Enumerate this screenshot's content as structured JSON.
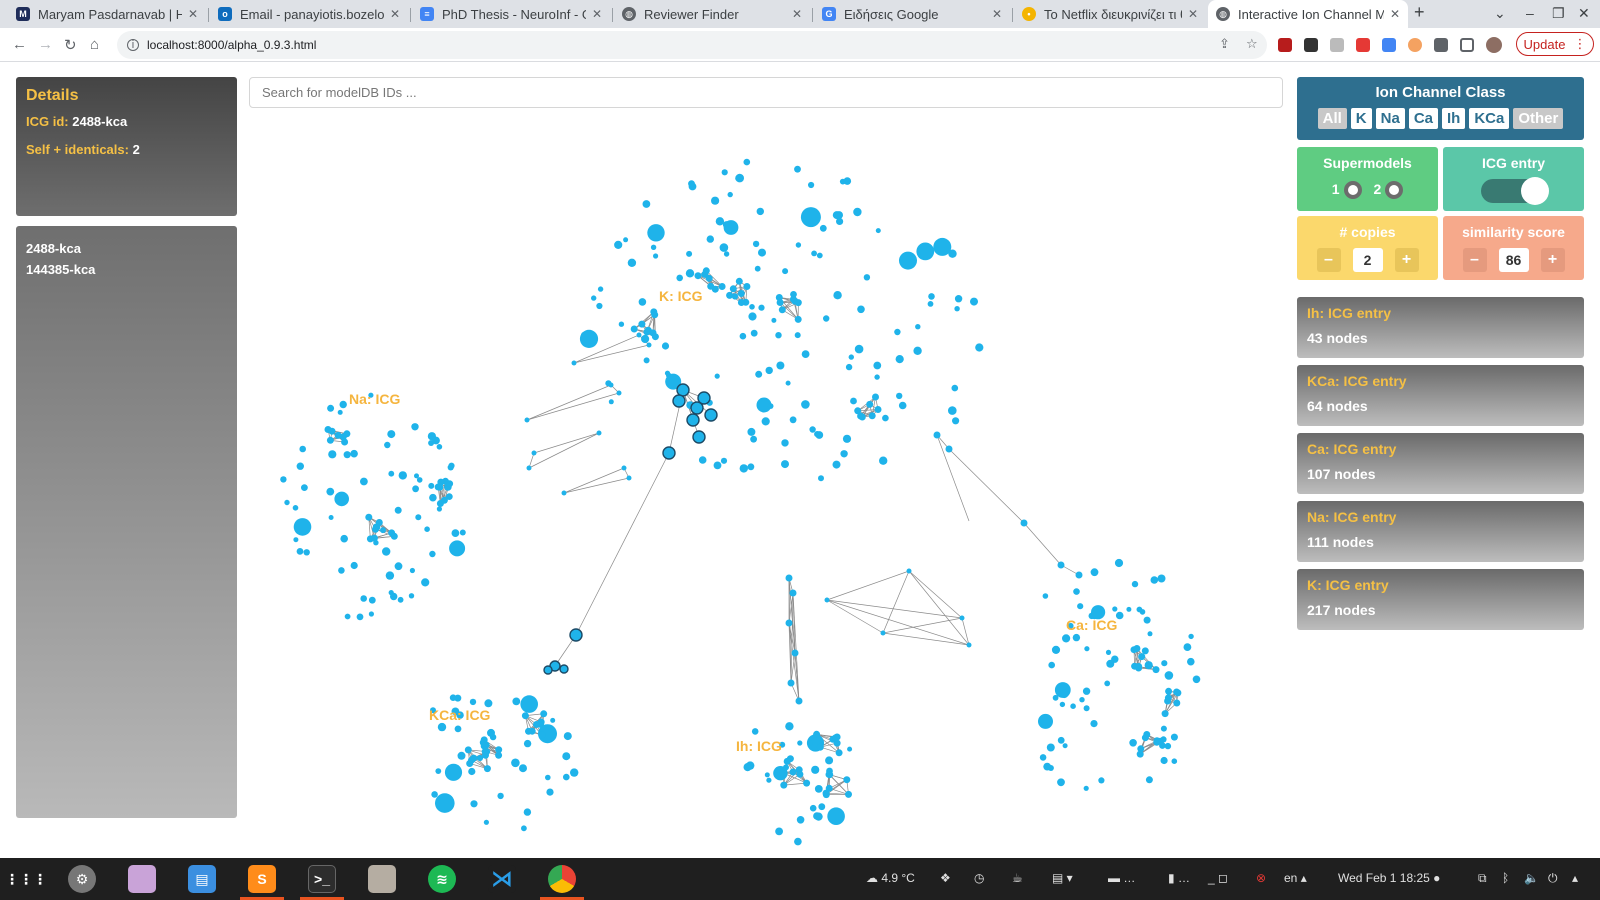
{
  "browser": {
    "tabs": [
      {
        "title": "Maryam Pasdarnavab | Hi",
        "favicon_color": "#1f2d5a",
        "active": false
      },
      {
        "title": "Email - panayiotis.bozelos",
        "favicon_color": "#0f6cbd",
        "active": false
      },
      {
        "title": "PhD Thesis - NeuroInf - Go",
        "favicon_color": "#4285f4",
        "active": false
      },
      {
        "title": "Reviewer Finder",
        "favicon_color": "#5f6368",
        "active": false
      },
      {
        "title": "Ειδήσεις Google",
        "favicon_color": "#4285f4",
        "active": false
      },
      {
        "title": "Το Netflix διευκρινίζει τι θ",
        "favicon_color": "#f4b400",
        "active": false
      },
      {
        "title": "Interactive Ion Channel M",
        "favicon_color": "#5f6368",
        "active": true
      }
    ],
    "new_tab_label": "+",
    "url": "localhost:8000/alpha_0.9.3.html",
    "update_label": "Update"
  },
  "details": {
    "title": "Details",
    "icg_label": "ICG id:",
    "icg_value": "2488-kca",
    "self_label": "Self + identicals:",
    "self_value": "2"
  },
  "model_list": [
    "2488-kca",
    "144385-kca"
  ],
  "search": {
    "placeholder": "Search for modelDB IDs ..."
  },
  "ion_class": {
    "title": "Ion Channel Class",
    "buttons": [
      {
        "label": "All",
        "selected": false
      },
      {
        "label": "K",
        "selected": true
      },
      {
        "label": "Na",
        "selected": true
      },
      {
        "label": "Ca",
        "selected": true
      },
      {
        "label": "Ih",
        "selected": true
      },
      {
        "label": "KCa",
        "selected": true
      },
      {
        "label": "Other",
        "selected": false
      }
    ]
  },
  "supermodels": {
    "title": "Supermodels",
    "option1": "1",
    "option2": "2"
  },
  "icg_entry": {
    "title": "ICG entry",
    "enabled": true
  },
  "copies": {
    "title": "# copies",
    "value": "2",
    "minus": "–",
    "plus": "+"
  },
  "similarity": {
    "title": "similarity score",
    "value": "86",
    "minus": "–",
    "plus": "+"
  },
  "entries": [
    {
      "title": "Ih: ICG entry",
      "nodes": "43 nodes"
    },
    {
      "title": "KCa: ICG entry",
      "nodes": "64 nodes"
    },
    {
      "title": "Ca: ICG entry",
      "nodes": "107 nodes"
    },
    {
      "title": "Na: ICG entry",
      "nodes": "111 nodes"
    },
    {
      "title": "K: ICG entry",
      "nodes": "217 nodes"
    }
  ],
  "graph": {
    "node_color": "#1fb3ea",
    "label_color": "#f5b53f",
    "clusters": [
      {
        "label": "K: ICG",
        "nodes": 217
      },
      {
        "label": "Na: ICG",
        "nodes": 111
      },
      {
        "label": "KCa: ICG",
        "nodes": 64
      },
      {
        "label": "Ih: ICG",
        "nodes": 43
      },
      {
        "label": "Ca: ICG",
        "nodes": 107
      }
    ]
  },
  "taskbar": {
    "weather": "4.9 °C",
    "language": "en",
    "datetime": "Wed Feb 1  18:25",
    "apps": [
      "app-grid-icon",
      "settings-icon",
      "tweaks-icon",
      "software-icon",
      "sublime-icon",
      "terminal-icon",
      "files-icon",
      "spotify-icon",
      "vscode-icon",
      "chrome-icon"
    ]
  }
}
